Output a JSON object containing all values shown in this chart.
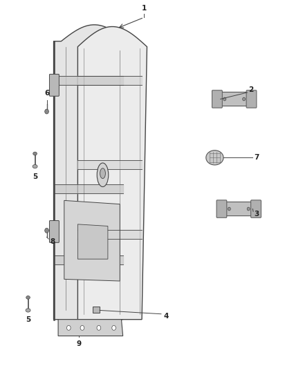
{
  "bg_color": "#ffffff",
  "fig_width": 4.38,
  "fig_height": 5.33,
  "dpi": 100,
  "door_outline_color": "#444444",
  "line_color": "#444444",
  "label_color": "#222222",
  "label_fontsize": 7.5
}
